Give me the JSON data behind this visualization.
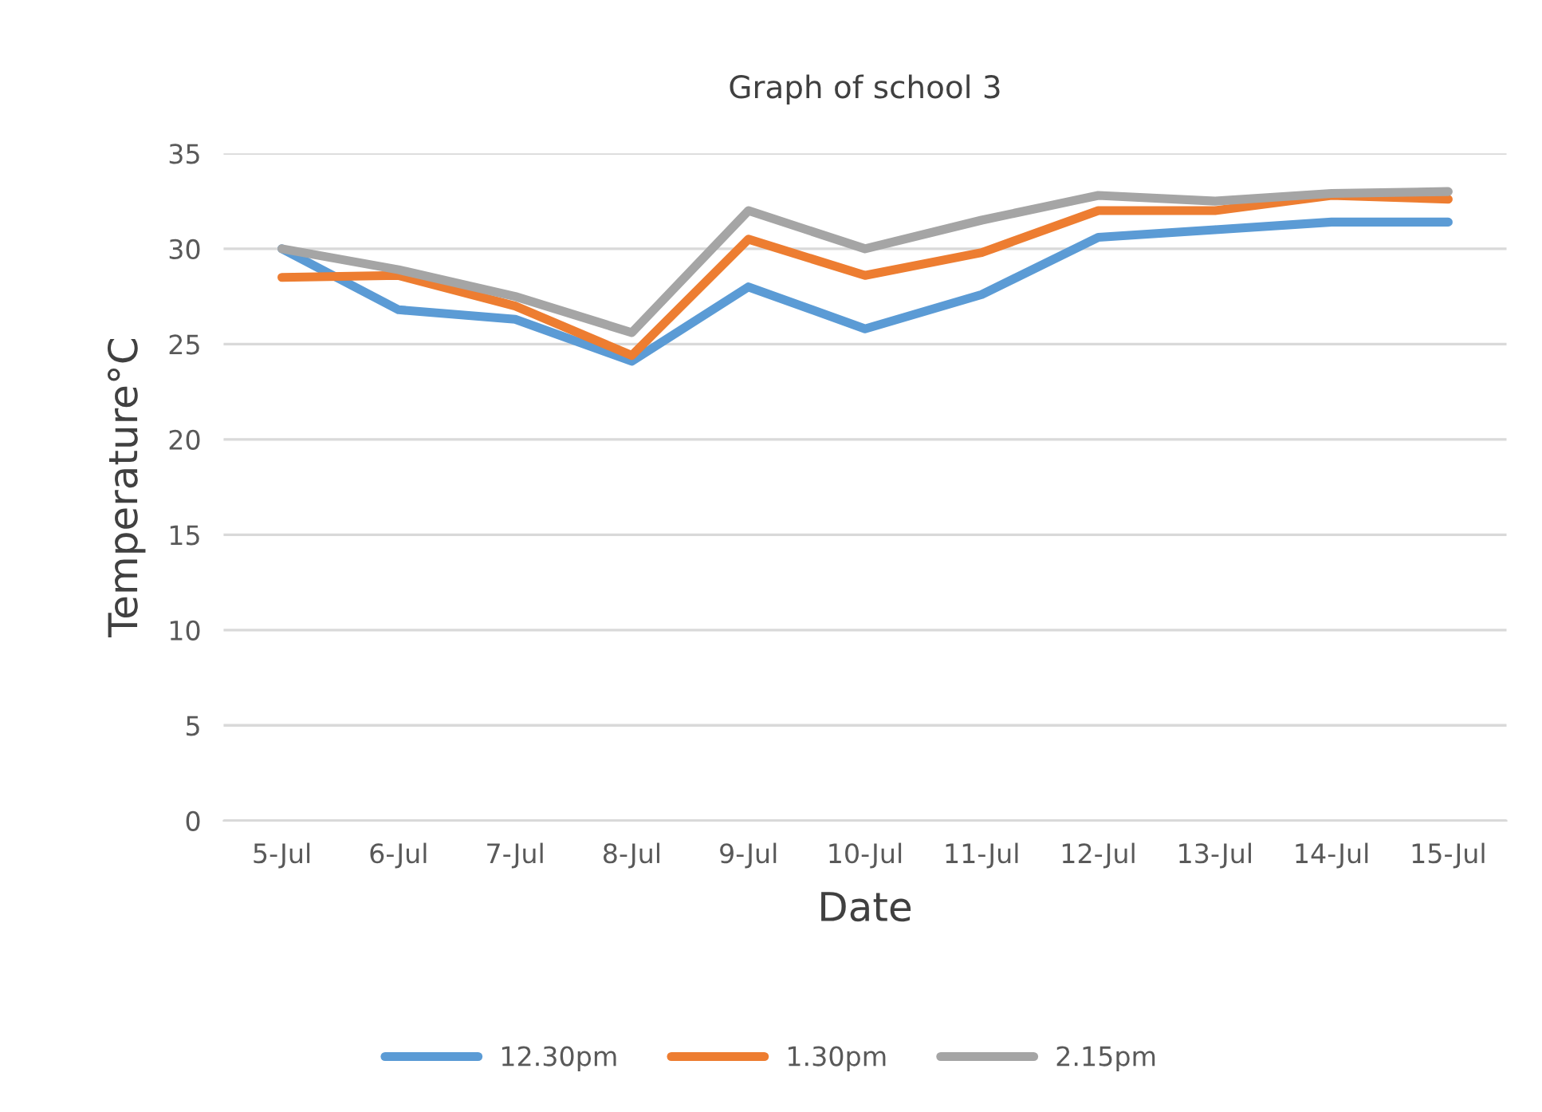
{
  "chart_data": {
    "type": "line",
    "title": "Graph of school 3",
    "xlabel": "Date",
    "ylabel": "Temperature°C",
    "categories": [
      "5-Jul",
      "6-Jul",
      "7-Jul",
      "8-Jul",
      "9-Jul",
      "10-Jul",
      "11-Jul",
      "12-Jul",
      "13-Jul",
      "14-Jul",
      "15-Jul"
    ],
    "series": [
      {
        "name": "12.30pm",
        "color": "#5b9bd5",
        "values": [
          30.0,
          26.8,
          26.3,
          24.1,
          28.0,
          25.8,
          27.6,
          30.6,
          31.0,
          31.4,
          31.4
        ]
      },
      {
        "name": "1.30pm",
        "color": "#ed7d31",
        "values": [
          28.5,
          28.6,
          27.0,
          24.4,
          30.5,
          28.6,
          29.8,
          32.0,
          32.0,
          32.8,
          32.6
        ]
      },
      {
        "name": "2.15pm",
        "color": "#a5a5a5",
        "values": [
          30.0,
          28.9,
          27.5,
          25.6,
          32.0,
          30.0,
          31.5,
          32.8,
          32.5,
          32.9,
          33.0
        ]
      }
    ],
    "ylim": [
      0,
      35
    ],
    "yticks": [
      0,
      5,
      10,
      15,
      20,
      25,
      30,
      35
    ],
    "grid": "y",
    "legend": "bottom",
    "marker": "none",
    "line_style": "solid"
  }
}
